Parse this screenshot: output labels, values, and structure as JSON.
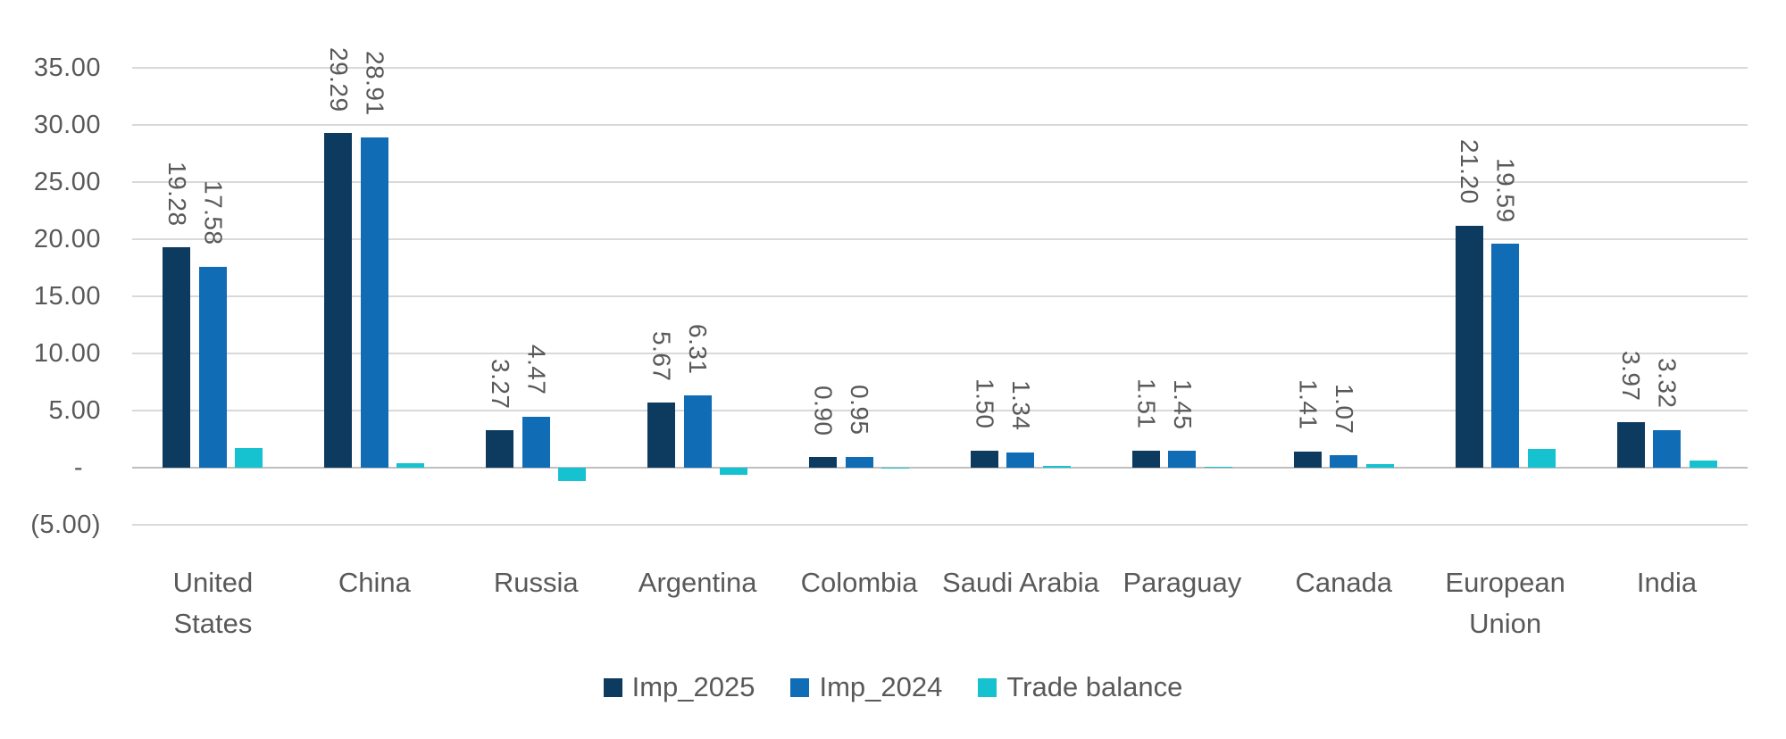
{
  "chart_data": {
    "type": "bar",
    "title": "",
    "categories": [
      "United States",
      "China",
      "Russia",
      "Argentina",
      "Colombia",
      "Saudi Arabia",
      "Paraguay",
      "Canada",
      "European Union",
      "India"
    ],
    "series": [
      {
        "name": "Imp_2025",
        "color": "#0D3A5F",
        "show_data_labels": true,
        "values": [
          19.28,
          29.29,
          3.27,
          5.67,
          0.9,
          1.5,
          1.51,
          1.41,
          21.2,
          3.97
        ]
      },
      {
        "name": "Imp_2024",
        "color": "#0F6CB5",
        "show_data_labels": true,
        "values": [
          17.58,
          28.91,
          4.47,
          6.31,
          0.95,
          1.34,
          1.45,
          1.07,
          19.59,
          3.32
        ]
      },
      {
        "name": "Trade balance",
        "color": "#16C1D0",
        "show_data_labels": false,
        "values": [
          1.7,
          0.38,
          -1.2,
          -0.64,
          -0.05,
          0.16,
          0.06,
          0.34,
          1.61,
          0.65
        ]
      }
    ],
    "data_label_format": "0.00",
    "data_label_rotation": "vertical",
    "xlabel": "",
    "ylabel": "",
    "y_axis": {
      "min": -5,
      "max": 35,
      "gridline_step": 5,
      "tick_values": [
        35,
        30,
        25,
        20,
        15,
        10,
        5,
        0,
        -5
      ],
      "tick_labels": [
        "35.00",
        "30.00",
        "25.00",
        "20.00",
        "15.00",
        "10.00",
        "5.00",
        "-",
        "(5.00)"
      ]
    },
    "grid": "horizontal",
    "legend_position": "bottom",
    "colors": {
      "axis_text": "#595959",
      "gridline": "#D9D9D9",
      "zero_line": "#BFBFBF",
      "background": "#FFFFFF"
    }
  }
}
